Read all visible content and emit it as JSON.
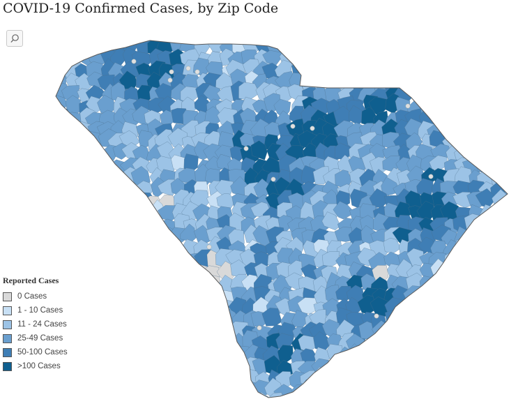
{
  "title": "COVID-19 Confirmed Cases, by Zip Code",
  "toolbar": {
    "search_icon": "magnifier-icon"
  },
  "colors": {
    "border": "#5a5a5a",
    "point": "#e0e0e0"
  },
  "legend": {
    "title": "Reported Cases",
    "items": [
      {
        "label": "0 Cases",
        "color": "#d9d9d9"
      },
      {
        "label": "1 - 10 Cases",
        "color": "#c8e0f5"
      },
      {
        "label": "11 - 24 Cases",
        "color": "#9cc3e6"
      },
      {
        "label": "25-49 Cases",
        "color": "#6a9fcf"
      },
      {
        "label": "50-100 Cases",
        "color": "#3f7eb5"
      },
      {
        "label": ">100 Cases",
        "color": "#0f5f8f"
      }
    ]
  }
}
